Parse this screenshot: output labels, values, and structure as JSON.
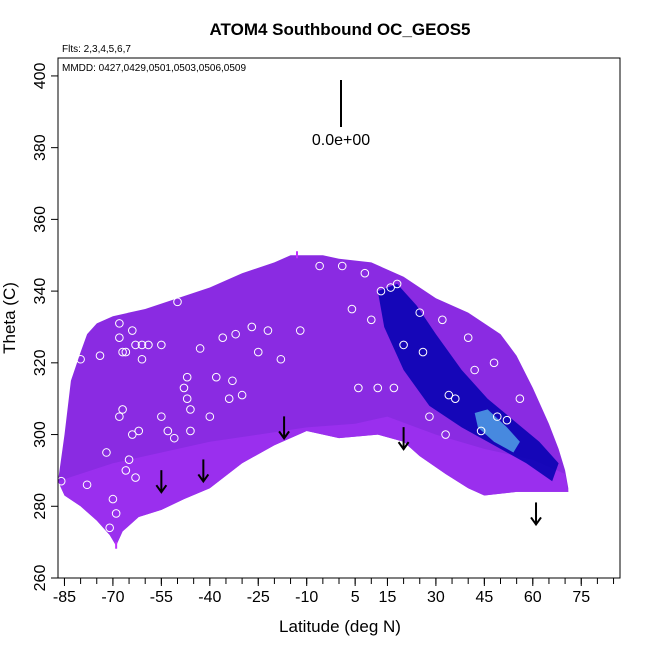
{
  "chart_data": {
    "type": "heatmap",
    "title": "ATOM4 Southbound OC_GEOS5",
    "flights_label": "Flts: 2,3,4,5,6,7",
    "dates_label": "MMDD: 0427,0429,0501,0503,0506,0509",
    "xlabel": "Latitude (deg N)",
    "ylabel": "Theta (C)",
    "xlim": [
      -87,
      87
    ],
    "ylim": [
      260,
      405
    ],
    "xticks": [
      -85,
      -70,
      -55,
      -40,
      -25,
      -10,
      5,
      15,
      30,
      45,
      60,
      75
    ],
    "yticks": [
      260,
      280,
      300,
      320,
      340,
      360,
      380,
      400
    ],
    "scale_value_label": "0.0e+00",
    "colors": {
      "field_base": "#8a2be2",
      "field_dark": "#0000b0",
      "field_light": "#4a90e0",
      "lower_band": "#9b30f0",
      "marker": "#ffffff",
      "arrow": "#000000"
    },
    "field_upper_boundary": [
      [
        -87,
        287
      ],
      [
        -85,
        300
      ],
      [
        -83,
        315
      ],
      [
        -80,
        323
      ],
      [
        -78,
        328
      ],
      [
        -75,
        331
      ],
      [
        -70,
        333
      ],
      [
        -60,
        335
      ],
      [
        -50,
        338
      ],
      [
        -40,
        341
      ],
      [
        -30,
        345
      ],
      [
        -20,
        348
      ],
      [
        -15,
        350
      ],
      [
        -5,
        350
      ],
      [
        0,
        349
      ],
      [
        10,
        348
      ],
      [
        20,
        344
      ],
      [
        30,
        338
      ],
      [
        40,
        334
      ],
      [
        50,
        328
      ],
      [
        55,
        322
      ],
      [
        60,
        313
      ],
      [
        65,
        303
      ],
      [
        68,
        296
      ],
      [
        70,
        290
      ],
      [
        71,
        285
      ]
    ],
    "field_lower_boundary": [
      [
        71,
        284
      ],
      [
        65,
        284
      ],
      [
        55,
        284
      ],
      [
        45,
        283
      ],
      [
        40,
        285
      ],
      [
        33,
        289
      ],
      [
        25,
        294
      ],
      [
        20,
        298
      ],
      [
        12,
        300
      ],
      [
        0,
        299
      ],
      [
        -10,
        301
      ],
      [
        -20,
        297
      ],
      [
        -30,
        292
      ],
      [
        -40,
        285
      ],
      [
        -48,
        282
      ],
      [
        -55,
        279
      ],
      [
        -62,
        277
      ],
      [
        -67,
        273
      ],
      [
        -69,
        269
      ],
      [
        -71,
        272
      ],
      [
        -75,
        276
      ],
      [
        -80,
        280
      ],
      [
        -85,
        283
      ],
      [
        -87,
        287
      ]
    ],
    "lower_band_boundary": [
      [
        -87,
        287
      ],
      [
        -70,
        292
      ],
      [
        -55,
        295
      ],
      [
        -40,
        298
      ],
      [
        -25,
        300
      ],
      [
        -10,
        302
      ],
      [
        5,
        303
      ],
      [
        15,
        305
      ],
      [
        30,
        300
      ],
      [
        45,
        296
      ],
      [
        60,
        293
      ],
      [
        70,
        289
      ],
      [
        71,
        284
      ]
    ],
    "dark_band": [
      [
        12,
        340
      ],
      [
        18,
        342
      ],
      [
        24,
        336
      ],
      [
        30,
        328
      ],
      [
        38,
        318
      ],
      [
        46,
        310
      ],
      [
        54,
        304
      ],
      [
        62,
        298
      ],
      [
        68,
        292
      ],
      [
        66,
        287
      ],
      [
        58,
        292
      ],
      [
        48,
        297
      ],
      [
        38,
        302
      ],
      [
        28,
        308
      ],
      [
        20,
        318
      ],
      [
        14,
        330
      ]
    ],
    "light_blob": [
      [
        42,
        306
      ],
      [
        46,
        307
      ],
      [
        52,
        302
      ],
      [
        56,
        298
      ],
      [
        54,
        295
      ],
      [
        48,
        298
      ],
      [
        43,
        302
      ]
    ],
    "data_points": [
      [
        -86,
        287
      ],
      [
        -80,
        321
      ],
      [
        -78,
        286
      ],
      [
        -74,
        322
      ],
      [
        -72,
        295
      ],
      [
        -71,
        274
      ],
      [
        -70,
        282
      ],
      [
        -69,
        278
      ],
      [
        -68,
        305
      ],
      [
        -67,
        307
      ],
      [
        -66,
        290
      ],
      [
        -65,
        293
      ],
      [
        -64,
        300
      ],
      [
        -63,
        288
      ],
      [
        -62,
        301
      ],
      [
        -68,
        327
      ],
      [
        -67,
        323
      ],
      [
        -66,
        323
      ],
      [
        -68,
        331
      ],
      [
        -64,
        329
      ],
      [
        -63,
        325
      ],
      [
        -61,
        321
      ],
      [
        -61,
        325
      ],
      [
        -59,
        325
      ],
      [
        -55,
        325
      ],
      [
        -55,
        305
      ],
      [
        -53,
        301
      ],
      [
        -51,
        299
      ],
      [
        -50,
        337
      ],
      [
        -48,
        313
      ],
      [
        -47,
        310
      ],
      [
        -47,
        316
      ],
      [
        -46,
        301
      ],
      [
        -46,
        307
      ],
      [
        -43,
        324
      ],
      [
        -40,
        305
      ],
      [
        -38,
        316
      ],
      [
        -36,
        327
      ],
      [
        -34,
        310
      ],
      [
        -33,
        315
      ],
      [
        -32,
        328
      ],
      [
        -30,
        311
      ],
      [
        -27,
        330
      ],
      [
        -25,
        323
      ],
      [
        -22,
        329
      ],
      [
        -18,
        321
      ],
      [
        -12,
        329
      ],
      [
        -6,
        347
      ],
      [
        1,
        347
      ],
      [
        4,
        335
      ],
      [
        6,
        313
      ],
      [
        8,
        345
      ],
      [
        10,
        332
      ],
      [
        12,
        313
      ],
      [
        13,
        340
      ],
      [
        16,
        341
      ],
      [
        17,
        313
      ],
      [
        18,
        342
      ],
      [
        20,
        325
      ],
      [
        22,
        345
      ],
      [
        25,
        334
      ],
      [
        26,
        323
      ],
      [
        28,
        305
      ],
      [
        32,
        332
      ],
      [
        33,
        300
      ],
      [
        34,
        311
      ],
      [
        36,
        310
      ],
      [
        40,
        327
      ],
      [
        42,
        318
      ],
      [
        44,
        301
      ],
      [
        46,
        332
      ],
      [
        48,
        320
      ],
      [
        49,
        305
      ],
      [
        52,
        304
      ],
      [
        56,
        310
      ],
      [
        60,
        328
      ]
    ],
    "arrows": [
      [
        -55,
        287
      ],
      [
        -42,
        290
      ],
      [
        -17,
        302
      ],
      [
        20,
        299
      ],
      [
        61,
        278
      ]
    ],
    "magenta_ticks": [
      [
        -69,
        269
      ],
      [
        -13,
        350
      ]
    ]
  }
}
